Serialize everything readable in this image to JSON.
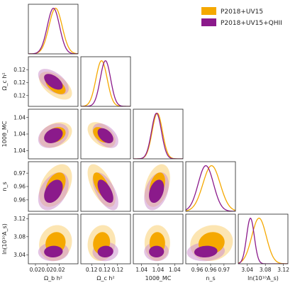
{
  "chart_data": {
    "type": "triangle-corner",
    "title": "",
    "legend": {
      "placement": "top-right",
      "entries": [
        {
          "name": "P2018+UV15",
          "color": "#f5a800"
        },
        {
          "name": "P2018+UV15+QHII",
          "color": "#8b1a8b"
        }
      ]
    },
    "parameters": [
      {
        "key": "omega_b",
        "label": "Ω_b h²",
        "range": [
          0.0212,
          0.0233
        ],
        "tick_values": [
          0.0215,
          0.022,
          0.0225
        ],
        "tick_labels": [
          "0.02",
          "0.02",
          "0.02"
        ]
      },
      {
        "key": "omega_c",
        "label": "Ω_c h²",
        "range": [
          0.1145,
          0.126
        ],
        "tick_values": [
          0.117,
          0.12,
          0.123
        ],
        "tick_labels": [
          "0.12",
          "0.12",
          "0.12"
        ]
      },
      {
        "key": "theta",
        "label": "100θ_MC",
        "range": [
          1.0395,
          1.0425
        ],
        "tick_values": [
          1.04,
          1.041,
          1.042
        ],
        "tick_labels": [
          "1.04",
          "1.04",
          "1.04"
        ]
      },
      {
        "key": "ns",
        "label": "n_s",
        "range": [
          0.952,
          0.978
        ],
        "tick_values": [
          0.958,
          0.965,
          0.972
        ],
        "tick_labels": [
          "0.96",
          "0.96",
          "0.97"
        ]
      },
      {
        "key": "lnAs",
        "label": "ln(10¹⁰A_s)",
        "range": [
          3.02,
          3.13
        ],
        "tick_values": [
          3.04,
          3.08,
          3.12
        ],
        "tick_labels": [
          "3.04",
          "3.08",
          "3.12"
        ]
      }
    ],
    "series": [
      {
        "name": "P2018+UV15",
        "color": "#f5a800",
        "mean": {
          "omega_b": 0.02235,
          "omega_c": 0.1193,
          "theta": 1.04095,
          "ns": 0.9655,
          "lnAs": 3.066
        },
        "sigma": {
          "omega_b": 0.00028,
          "omega_c": 0.0013,
          "theta": 0.00031,
          "ns": 0.0045,
          "lnAs": 0.016
        },
        "correlations": [
          [
            0,
            1,
            -0.55
          ],
          [
            0,
            2,
            0.3
          ],
          [
            0,
            3,
            0.4
          ],
          [
            0,
            4,
            0.1
          ],
          [
            1,
            2,
            -0.45
          ],
          [
            1,
            3,
            -0.6
          ],
          [
            1,
            4,
            0.1
          ],
          [
            2,
            3,
            0.35
          ],
          [
            2,
            4,
            0.0
          ],
          [
            3,
            4,
            0.1
          ]
        ]
      },
      {
        "name": "P2018+UV15+QHII",
        "color": "#8b1a8b",
        "mean": {
          "omega_b": 0.02226,
          "omega_c": 0.1202,
          "theta": 1.0409,
          "ns": 0.9625,
          "lnAs": 3.047
        },
        "sigma": {
          "omega_b": 0.00026,
          "omega_c": 0.0012,
          "theta": 0.0003,
          "ns": 0.004,
          "lnAs": 0.0085
        },
        "correlations": [
          [
            0,
            1,
            -0.55
          ],
          [
            0,
            2,
            0.3
          ],
          [
            0,
            3,
            0.4
          ],
          [
            0,
            4,
            0.05
          ],
          [
            1,
            2,
            -0.45
          ],
          [
            1,
            3,
            -0.6
          ],
          [
            1,
            4,
            0.05
          ],
          [
            2,
            3,
            0.35
          ],
          [
            2,
            4,
            0.0
          ],
          [
            3,
            4,
            0.1
          ]
        ]
      }
    ]
  }
}
